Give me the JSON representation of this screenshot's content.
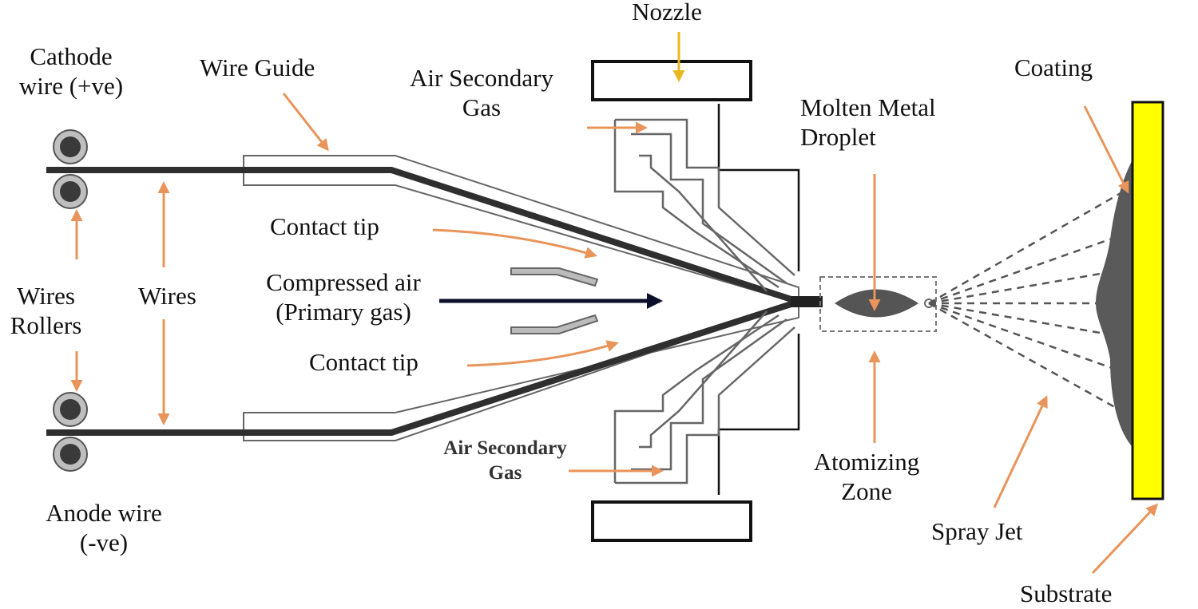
{
  "labels": {
    "cathode_wire": "Cathode\nwire (+ve)",
    "wire_guide": "Wire Guide",
    "air_secondary_gas_top": "Air Secondary\nGas",
    "nozzle": "Nozzle",
    "molten_metal_droplet": "Molten Metal\nDroplet",
    "coating": "Coating",
    "contact_tip_top": "Contact tip",
    "compressed_air": "Compressed air\n(Primary gas)",
    "contact_tip_bottom": "Contact tip",
    "wires_rollers": "Wires\nRollers",
    "wires": "Wires",
    "air_secondary_gas_bottom": "Air Secondary\nGas",
    "anode_wire": "Anode wire\n(-ve)",
    "atomizing_zone": "Atomizing\nZone",
    "spray_jet": "Spray Jet",
    "substrate": "Substrate"
  },
  "colors": {
    "arrow_orange": "#e8945a",
    "nozzle_arrow_yellow": "#e8b820",
    "compressed_air_arrow": "#0a0f2a",
    "substrate_fill": "#ffff00",
    "coating_fill": "#5a5a5a",
    "wire_dark": "#2f2f2f"
  }
}
